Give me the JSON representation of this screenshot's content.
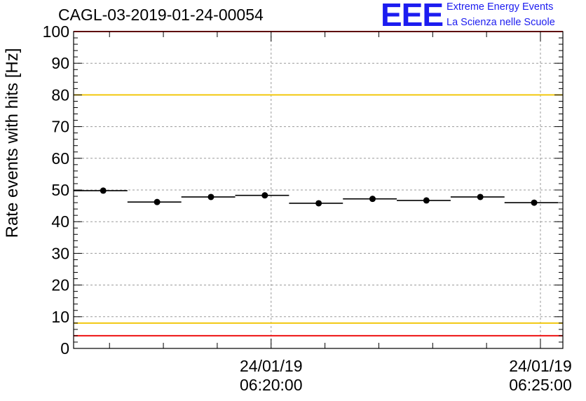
{
  "header": {
    "run_title": "CAGL-03-2019-01-24-00054",
    "logo_mark": "EEE",
    "logo_line1": "Extreme Energy Events",
    "logo_line2": "La Scienza nelle Scuole"
  },
  "colors": {
    "red_limit": "#ee1111",
    "yellow_limit": "#f2c80f",
    "logo_blue": "#1c1cf0",
    "grid": "#9a9a9a"
  },
  "chart_data": {
    "type": "scatter",
    "title": "CAGL-03-2019-01-24-00054",
    "ylabel": "Rate events with hits [Hz]",
    "ylim": [
      0,
      100
    ],
    "yticks": [
      0,
      10,
      20,
      30,
      40,
      50,
      60,
      70,
      80,
      90,
      100
    ],
    "xlim": [
      "06:16:20",
      "06:25:25"
    ],
    "xticks": [
      {
        "time": "06:20:00",
        "date": "24/01/19"
      },
      {
        "time": "06:25:00",
        "date": "24/01/19"
      }
    ],
    "grid": true,
    "reference_lines": [
      {
        "y": 100,
        "color": "red"
      },
      {
        "y": 80,
        "color": "yellow"
      },
      {
        "y": 8,
        "color": "yellow"
      },
      {
        "y": 4,
        "color": "red"
      }
    ],
    "points": [
      {
        "x": "06:16:53",
        "y": 49.8,
        "x_start": "06:16:20",
        "x_end": "06:17:20"
      },
      {
        "x": "06:17:53",
        "y": 46.2,
        "x_start": "06:17:20",
        "x_end": "06:18:20"
      },
      {
        "x": "06:18:53",
        "y": 47.8,
        "x_start": "06:18:20",
        "x_end": "06:19:20"
      },
      {
        "x": "06:19:53",
        "y": 48.3,
        "x_start": "06:19:20",
        "x_end": "06:20:20"
      },
      {
        "x": "06:20:53",
        "y": 45.8,
        "x_start": "06:20:20",
        "x_end": "06:21:20"
      },
      {
        "x": "06:21:53",
        "y": 47.2,
        "x_start": "06:21:20",
        "x_end": "06:22:20"
      },
      {
        "x": "06:22:53",
        "y": 46.7,
        "x_start": "06:22:20",
        "x_end": "06:23:20"
      },
      {
        "x": "06:23:53",
        "y": 47.8,
        "x_start": "06:23:20",
        "x_end": "06:24:20"
      },
      {
        "x": "06:24:53",
        "y": 46.0,
        "x_start": "06:24:20",
        "x_end": "06:25:20"
      }
    ]
  }
}
